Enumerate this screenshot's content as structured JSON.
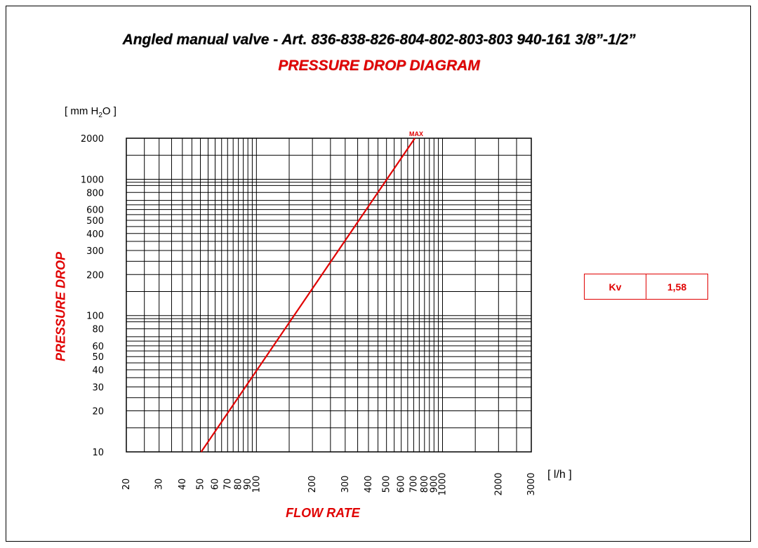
{
  "title": "Angled manual valve  - Art. 836-838-826-804-802-803-803 940-161  3/8”-1/2”",
  "subtitle": "PRESSURE DROP DIAGRAM",
  "kv": {
    "label": "Kv",
    "value": "1,58"
  },
  "chart_data": {
    "type": "line",
    "scale": "log-log",
    "ylabel": "PRESSURE DROP",
    "yunit_prefix": "[ mm H",
    "yunit_sub": "2",
    "yunit_suffix": "O ]",
    "xlabel": "FLOW RATE",
    "xunit": "[ l/h ]",
    "xlim": [
      20,
      3000
    ],
    "ylim": [
      10,
      2000
    ],
    "x_tick_labels": [
      20,
      30,
      40,
      50,
      60,
      70,
      80,
      90,
      100,
      200,
      300,
      400,
      500,
      600,
      700,
      800,
      900,
      1000,
      2000,
      3000
    ],
    "y_tick_labels": [
      10,
      20,
      30,
      40,
      50,
      60,
      80,
      100,
      200,
      300,
      400,
      500,
      600,
      800,
      1000,
      2000
    ],
    "x_grid": [
      20,
      25,
      30,
      35,
      40,
      45,
      50,
      55,
      60,
      65,
      70,
      75,
      80,
      85,
      90,
      95,
      100,
      150,
      200,
      250,
      300,
      350,
      400,
      450,
      500,
      550,
      600,
      650,
      700,
      750,
      800,
      850,
      900,
      950,
      1000,
      1500,
      2000,
      2500,
      3000
    ],
    "y_grid": [
      10,
      15,
      20,
      25,
      30,
      35,
      40,
      45,
      50,
      55,
      60,
      65,
      70,
      80,
      90,
      95,
      100,
      150,
      200,
      250,
      300,
      350,
      400,
      450,
      500,
      550,
      600,
      650,
      700,
      800,
      900,
      950,
      1000,
      1500,
      2000
    ],
    "grid": true,
    "series": [
      {
        "color": "#e00000",
        "x": [
          50.5,
          710
        ],
        "y": [
          10,
          2000
        ]
      }
    ],
    "annotation": {
      "text": "MAX",
      "x": 710,
      "y": 2000,
      "color": "#e00000"
    }
  }
}
